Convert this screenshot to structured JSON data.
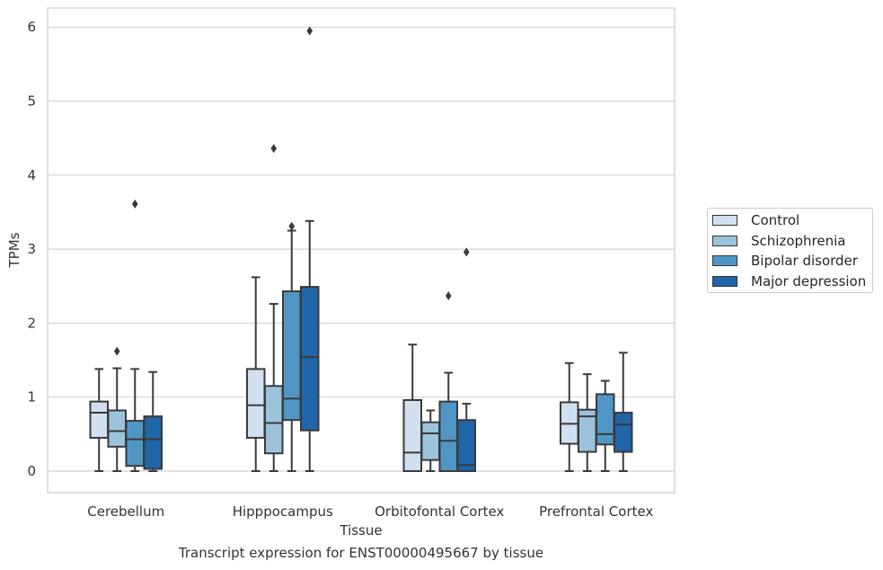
{
  "caption": "Transcript expression for ENST00000495667 by tissue",
  "chart_data": {
    "type": "box",
    "xlabel": "Tissue",
    "ylabel": "TPMs",
    "ylim": [
      -0.3,
      6.25
    ],
    "yticks": [
      0,
      1,
      2,
      3,
      4,
      5,
      6
    ],
    "grid": "horizontal",
    "legend_placement": "right",
    "categories": [
      "Cerebellum",
      "Hipppocampus",
      "Orbitofontal Cortex",
      "Prefrontal Cortex"
    ],
    "series": [
      {
        "name": "Control",
        "color": "#d0e0f0",
        "boxes": [
          {
            "whislo": 0,
            "q1": 0.45,
            "med": 0.79,
            "q3": 0.94,
            "whishi": 1.38,
            "fliers": []
          },
          {
            "whislo": 0,
            "q1": 0.45,
            "med": 0.89,
            "q3": 1.38,
            "whishi": 2.62,
            "fliers": []
          },
          {
            "whislo": 0,
            "q1": 0,
            "med": 0.25,
            "q3": 0.96,
            "whishi": 1.71,
            "fliers": []
          },
          {
            "whislo": 0,
            "q1": 0.37,
            "med": 0.64,
            "q3": 0.93,
            "whishi": 1.46,
            "fliers": []
          }
        ]
      },
      {
        "name": "Schizophrenia",
        "color": "#9bc4dc",
        "boxes": [
          {
            "whislo": 0,
            "q1": 0.33,
            "med": 0.54,
            "q3": 0.82,
            "whishi": 1.39,
            "fliers": [
              1.62
            ]
          },
          {
            "whislo": 0,
            "q1": 0.24,
            "med": 0.65,
            "q3": 1.15,
            "whishi": 2.26,
            "fliers": [
              4.36
            ]
          },
          {
            "whislo": 0,
            "q1": 0.15,
            "med": 0.51,
            "q3": 0.66,
            "whishi": 0.82,
            "fliers": []
          },
          {
            "whislo": 0,
            "q1": 0.26,
            "med": 0.74,
            "q3": 0.83,
            "whishi": 1.31,
            "fliers": []
          }
        ]
      },
      {
        "name": "Bipolar disorder",
        "color": "#5096c5",
        "boxes": [
          {
            "whislo": 0,
            "q1": 0.07,
            "med": 0.43,
            "q3": 0.68,
            "whishi": 1.38,
            "fliers": [
              3.61
            ]
          },
          {
            "whislo": 0,
            "q1": 0.69,
            "med": 0.98,
            "q3": 2.43,
            "whishi": 3.25,
            "fliers": [
              3.31
            ]
          },
          {
            "whislo": 0,
            "q1": 0,
            "med": 0.41,
            "q3": 0.94,
            "whishi": 1.33,
            "fliers": [
              2.37
            ]
          },
          {
            "whislo": 0,
            "q1": 0.36,
            "med": 0.5,
            "q3": 1.04,
            "whishi": 1.22,
            "fliers": []
          }
        ]
      },
      {
        "name": "Major depression",
        "color": "#1f65a7",
        "boxes": [
          {
            "whislo": 0,
            "q1": 0.03,
            "med": 0.43,
            "q3": 0.74,
            "whishi": 1.34,
            "fliers": []
          },
          {
            "whislo": 0,
            "q1": 0.55,
            "med": 1.54,
            "q3": 2.49,
            "whishi": 3.38,
            "fliers": [
              5.95
            ]
          },
          {
            "whislo": 0,
            "q1": 0,
            "med": 0.08,
            "q3": 0.69,
            "whishi": 0.91,
            "fliers": [
              2.96
            ]
          },
          {
            "whislo": 0,
            "q1": 0.26,
            "med": 0.63,
            "q3": 0.79,
            "whishi": 1.6,
            "fliers": []
          }
        ]
      }
    ]
  }
}
